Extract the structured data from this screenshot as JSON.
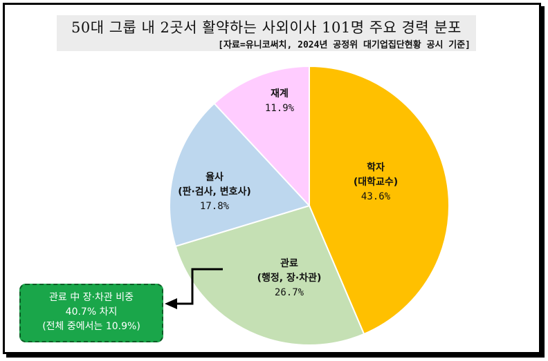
{
  "header": {
    "title": "50대 그룹 내 2곳서 활약하는 사외이사 101명 주요 경력 분포",
    "source": "[자료=유니코써치, 2024년 공정위 대기업집단현황 공시 기준]"
  },
  "chart_data": {
    "type": "pie",
    "start_angle_deg": 0,
    "direction": "clockwise",
    "slices": [
      {
        "label": "학자",
        "sublabel": "(대학교수)",
        "value": 43.6,
        "value_text": "43.6%",
        "color": "#ffc000"
      },
      {
        "label": "관료",
        "sublabel": "(행정, 장·차관)",
        "value": 26.7,
        "value_text": "26.7%",
        "color": "#c5e0b4"
      },
      {
        "label": "율사",
        "sublabel": "(판·검사, 변호사)",
        "value": 17.8,
        "value_text": "17.8%",
        "color": "#bdd7ee"
      },
      {
        "label": "재계",
        "sublabel": "",
        "value": 11.9,
        "value_text": "11.9%",
        "color": "#ffccff"
      }
    ]
  },
  "callout": {
    "line1": "관료 中 장·차관 비중",
    "line2": "40.7% 차지",
    "line3": "(전체 중에서는 10.9%)",
    "bg_color": "#1aa64a"
  }
}
